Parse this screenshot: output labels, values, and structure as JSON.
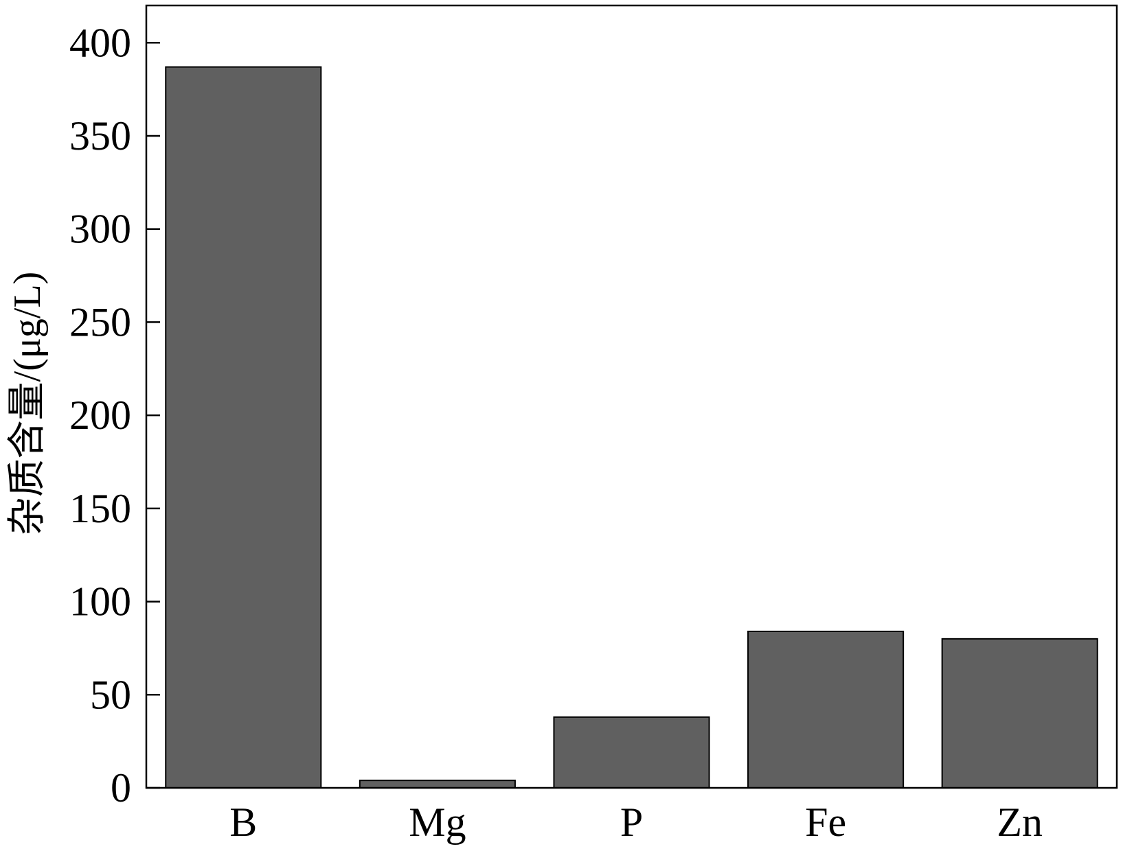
{
  "chart_data": {
    "type": "bar",
    "categories": [
      "B",
      "Mg",
      "P",
      "Fe",
      "Zn"
    ],
    "values": [
      387,
      4,
      38,
      84,
      80
    ],
    "title": "",
    "xlabel": "",
    "ylabel": "杂质含量/(μg/L)",
    "ylim": [
      0,
      420
    ],
    "yticks": [
      0,
      50,
      100,
      150,
      200,
      250,
      300,
      350,
      400
    ],
    "grid": false,
    "bar_color": "#606060",
    "edge_color": "#000000"
  }
}
